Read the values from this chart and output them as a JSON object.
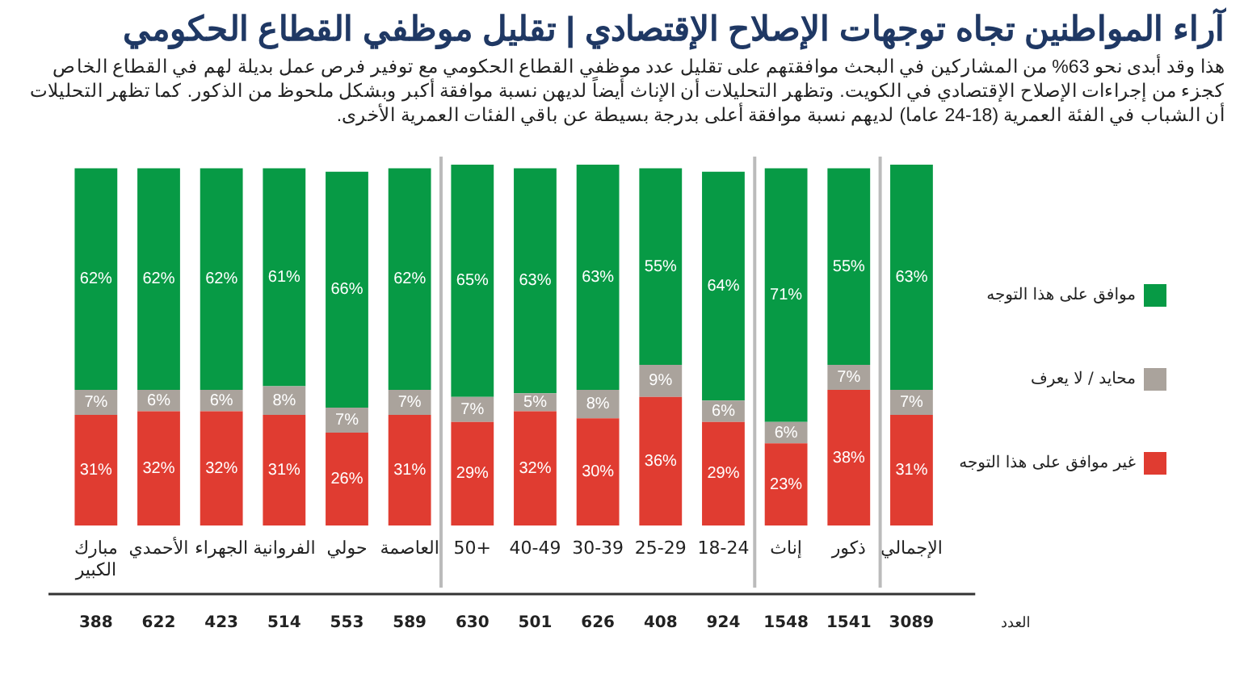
{
  "chart_data": {
    "type": "bar",
    "stacked": true,
    "title": "آراء المواطنين تجاه توجهات الإصلاح الإقتصادي | تقليل موظفي القطاع الحكومي",
    "subtitle": "هذا وقد أبدى نحو 63% من المشاركين في البحث موافقتهم على تقليل عدد موظفي القطاع الحكومي مع توفير فرص عمل بديلة لهم في القطاع الخاص كجزء من إجراءات الإصلاح الإقتصادي في الكويت. وتظهر التحليلات أن الإناث أيضاً لديهن نسبة موافقة أكبر وبشكل ملحوظ من الذكور. كما تظهر التحليلات أن الشباب في الفئة العمرية (18-24 عاما) لديهم نسبة موافقة أعلى بدرجة بسيطة عن باقي الفئات العمرية الأخرى.",
    "categories": [
      "مبارك الكبير",
      "الأحمدي",
      "الجهراء",
      "الفروانية",
      "حولي",
      "العاصمة",
      "50+",
      "40-49",
      "30-39",
      "25-29",
      "18-24",
      "إناث",
      "ذكور",
      "الإجمالي"
    ],
    "series": [
      {
        "name": "غير موافق على هذا التوجه",
        "color": "#e03c31",
        "values": [
          31,
          32,
          32,
          31,
          26,
          31,
          29,
          32,
          30,
          36,
          29,
          23,
          38,
          31
        ],
        "value_labels": [
          "31%",
          "32%",
          "32%",
          "31%",
          "26%",
          "31%",
          "29%",
          "32%",
          "30%",
          "36%",
          "29%",
          "23%",
          "38%",
          "31%"
        ]
      },
      {
        "name": "محايد / لا يعرف",
        "color": "#aaa39c",
        "values": [
          7,
          6,
          6,
          8,
          7,
          7,
          7,
          5,
          8,
          9,
          6,
          6,
          7,
          7
        ],
        "value_labels": [
          "7%",
          "6%",
          "6%",
          "8%",
          "7%",
          "7%",
          "7%",
          "5%",
          "8%",
          "9%",
          "6%",
          "6%",
          "7%",
          "7%"
        ]
      },
      {
        "name": "موافق على هذا التوجه",
        "color": "#079a45",
        "values": [
          62,
          62,
          62,
          61,
          66,
          62,
          65,
          63,
          63,
          55,
          64,
          71,
          55,
          63
        ],
        "value_labels": [
          "62%",
          "62%",
          "62%",
          "61%",
          "66%",
          "62%",
          "65%",
          "63%",
          "63%",
          "55%",
          "64%",
          "71%",
          "55%",
          "63%"
        ]
      }
    ],
    "ylim": [
      0,
      101
    ],
    "tick_labels": "x",
    "grid": false,
    "legend": "right",
    "annotations": [
      "388",
      "622",
      "423",
      "514",
      "553",
      "589",
      "630",
      "501",
      "626",
      "408",
      "924",
      "1548",
      "1541",
      "3089",
      "العدد"
    ]
  }
}
